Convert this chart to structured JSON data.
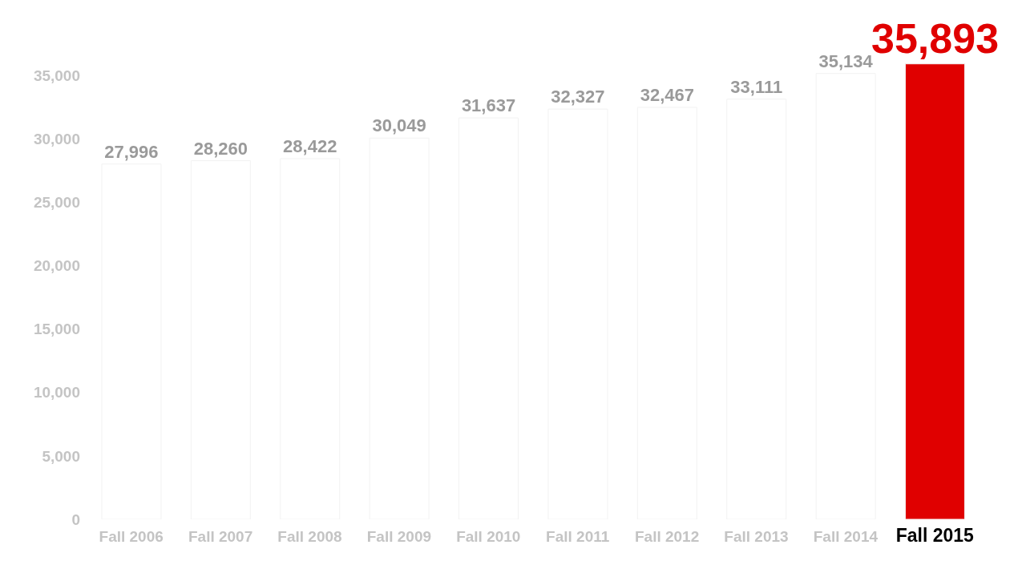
{
  "chart_data": {
    "type": "bar",
    "categories": [
      "Fall 2006",
      "Fall 2007",
      "Fall 2008",
      "Fall 2009",
      "Fall 2010",
      "Fall 2011",
      "Fall 2012",
      "Fall 2013",
      "Fall 2014",
      "Fall 2015"
    ],
    "values": [
      27996,
      28260,
      28422,
      30049,
      31637,
      32327,
      32467,
      33111,
      35134,
      35893
    ],
    "value_labels": [
      "27,996",
      "28,260",
      "28,422",
      "30,049",
      "31,637",
      "32,327",
      "32,467",
      "33,111",
      "35,134",
      "35,893"
    ],
    "colors": [
      "#ffffff",
      "#ffffff",
      "#ffffff",
      "#ffffff",
      "#ffffff",
      "#ffffff",
      "#ffffff",
      "#ffffff",
      "#ffffff",
      "#e00000"
    ],
    "ylim": [
      0,
      36000
    ],
    "yticks": [
      0,
      {
        "value": 5000,
        "label": "5,000"
      },
      {
        "value": 10000,
        "label": "10,000"
      },
      {
        "value": 15000,
        "label": "15,000"
      },
      {
        "value": 20000,
        "label": "20,000"
      },
      {
        "value": 25000,
        "label": "25,000"
      },
      {
        "value": 30000,
        "label": "30,000"
      },
      {
        "value": 35000,
        "label": "35,000"
      }
    ],
    "grid": false,
    "legend": false
  }
}
